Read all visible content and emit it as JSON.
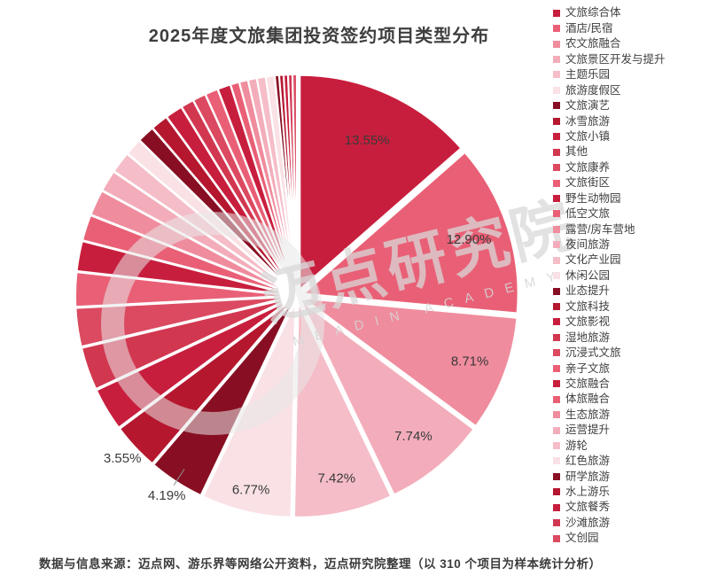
{
  "title": "2025年度文旅集团投资签约项目类型分布",
  "source_note": "数据与信息来源：迈点网、游乐界等网络公开资料，迈点研究院整理（以 310 个项目为样本统计分析）",
  "watermark": {
    "cn": "迈点研究院",
    "en": "MEADIN ACADEMY"
  },
  "colors": {
    "label_text": "#3a3a3a",
    "title_text": "#3e3e3e",
    "slice_border": "#ffffff",
    "leader_line": "#8f8f8f",
    "watermark": "#d9d9d9"
  },
  "chart_data": {
    "type": "pie",
    "title": "2025年度文旅集团投资签约项目类型分布",
    "legend_position": "right",
    "sample_size_note": "以 310 个项目为样本统计分析",
    "categories": [
      "文旅综合体",
      "酒店/民宿",
      "农文旅融合",
      "文旅景区开发与提升",
      "主题乐园",
      "旅游度假区",
      "文旅演艺",
      "冰雪旅游",
      "文旅小镇",
      "其他",
      "文旅康养",
      "文旅街区",
      "野生动物园",
      "低空文旅",
      "露营/房车营地",
      "夜间旅游",
      "文化产业园",
      "休闲公园",
      "业态提升",
      "文旅科技",
      "文旅影视",
      "湿地旅游",
      "沉浸式文旅",
      "亲子文旅",
      "交旅融合",
      "体旅融合",
      "生态旅游",
      "运营提升",
      "游轮",
      "红色旅游",
      "研学旅游",
      "水上游乐",
      "文旅餐秀",
      "沙滩旅游",
      "文创园"
    ],
    "values": [
      13.55,
      12.9,
      8.71,
      7.74,
      7.42,
      6.77,
      4.19,
      3.55,
      3.23,
      3.23,
      2.9,
      2.58,
      2.26,
      1.94,
      1.94,
      1.61,
      1.61,
      1.29,
      1.29,
      1.29,
      1.29,
      0.97,
      0.97,
      0.97,
      0.97,
      0.65,
      0.65,
      0.65,
      0.65,
      0.65,
      0.32,
      0.32,
      0.32,
      0.32,
      0.32
    ],
    "value_labels": [
      "13.55%",
      "12.90%",
      "8.71%",
      "7.74%",
      "7.42%",
      "6.77%",
      "4.19%",
      "3.55%"
    ],
    "slice_colors": [
      "#c81e3d",
      "#e96076",
      "#ef8c9d",
      "#f3adba",
      "#f5bdc8",
      "#f9e1e5",
      "#880f23",
      "#b5172f",
      "#c81e3d",
      "#d23750",
      "#db4a60",
      "#e96076",
      "#c81e3d",
      "#e96076",
      "#ef8c9d",
      "#f3adba",
      "#f5bdc8",
      "#f9e1e5",
      "#880f23",
      "#b5172f",
      "#c81e3d",
      "#d23750",
      "#db4a60",
      "#e96076",
      "#c81e3d",
      "#e96076",
      "#ef8c9d",
      "#f3adba",
      "#f5bdc8",
      "#f9e1e5",
      "#880f23",
      "#b5172f",
      "#c81e3d",
      "#d23750",
      "#db4a60"
    ]
  }
}
